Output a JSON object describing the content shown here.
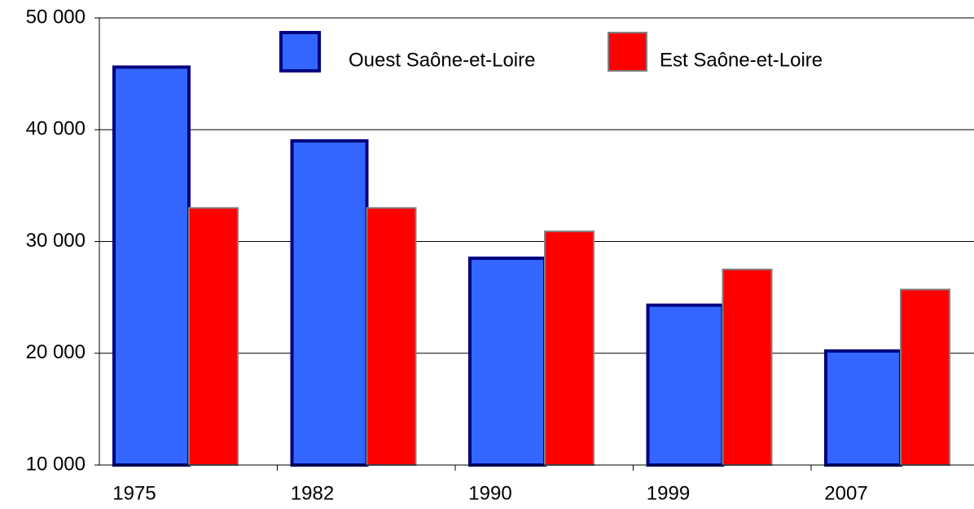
{
  "chart_data": {
    "type": "bar",
    "categories": [
      "1975",
      "1982",
      "1990",
      "1999",
      "2007"
    ],
    "series": [
      {
        "name": "Ouest Saône-et-Loire",
        "color": "#3366ff",
        "values": [
          45600,
          39000,
          28500,
          24300,
          20200
        ]
      },
      {
        "name": "Est Saône-et-Loire",
        "color": "#ff0000",
        "values": [
          33000,
          33000,
          30900,
          27500,
          25700
        ]
      }
    ],
    "ylim": [
      10000,
      50000
    ],
    "yticks": [
      {
        "value": 10000,
        "label": "10 000"
      },
      {
        "value": 20000,
        "label": "20 000"
      },
      {
        "value": 30000,
        "label": "30 000"
      },
      {
        "value": 40000,
        "label": "40 000"
      },
      {
        "value": 50000,
        "label": "50 000"
      }
    ],
    "grid": true
  }
}
